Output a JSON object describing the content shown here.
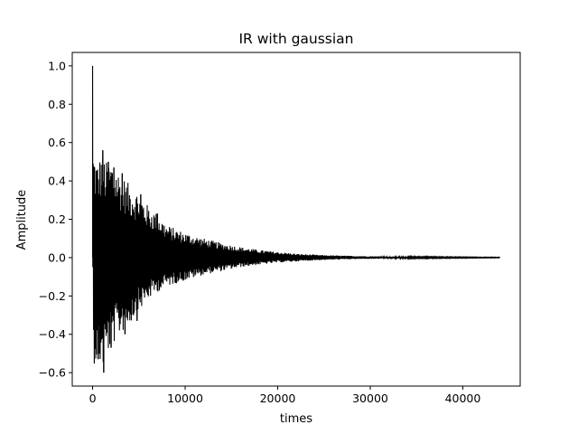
{
  "chart_data": {
    "type": "line",
    "title": "IR with gaussian",
    "xlabel": "times",
    "ylabel": "Amplitude",
    "xlim": [
      -2200,
      46200
    ],
    "ylim": [
      -0.67,
      1.07
    ],
    "xticks": [
      0,
      10000,
      20000,
      30000,
      40000
    ],
    "xtick_labels": [
      "0",
      "10000",
      "20000",
      "30000",
      "40000"
    ],
    "yticks": [
      -0.6,
      -0.4,
      -0.2,
      0.0,
      0.2,
      0.4,
      0.6,
      0.8,
      1.0
    ],
    "ytick_labels": [
      "−0.6",
      "−0.4",
      "−0.2",
      "0.0",
      "0.2",
      "0.4",
      "0.6",
      "0.8",
      "1.0"
    ],
    "grid": false,
    "series": [
      {
        "color": "#000000",
        "peak": {
          "x": 0,
          "y": 1.0
        },
        "envelope": {
          "x": [
            100,
            300,
            600,
            1000,
            1500,
            2000,
            3000,
            4000,
            5000,
            6000,
            7000,
            8000,
            10000,
            12000,
            14000,
            16000,
            18000,
            20000,
            22000,
            25000,
            28000,
            32000,
            36000,
            40000,
            44000
          ],
          "upper": [
            0.58,
            0.53,
            0.5,
            0.56,
            0.5,
            0.52,
            0.44,
            0.38,
            0.34,
            0.27,
            0.23,
            0.17,
            0.13,
            0.1,
            0.075,
            0.055,
            0.04,
            0.03,
            0.02,
            0.013,
            0.009,
            0.006,
            0.004,
            0.003,
            0.002
          ],
          "lower": [
            -0.55,
            -0.56,
            -0.53,
            -0.6,
            -0.52,
            -0.47,
            -0.4,
            -0.35,
            -0.28,
            -0.22,
            -0.18,
            -0.15,
            -0.12,
            -0.09,
            -0.07,
            -0.05,
            -0.037,
            -0.026,
            -0.02,
            -0.012,
            -0.008,
            -0.005,
            -0.003,
            -0.002,
            -0.001
          ]
        },
        "spikes": [
          {
            "x": 1100,
            "y": 0.56
          },
          {
            "x": 1700,
            "y": 0.5
          },
          {
            "x": 2300,
            "y": 0.47
          },
          {
            "x": 3200,
            "y": 0.44
          },
          {
            "x": 5200,
            "y": 0.33
          },
          {
            "x": 7000,
            "y": 0.23
          },
          {
            "x": 1200,
            "y": -0.6
          },
          {
            "x": 600,
            "y": -0.53
          },
          {
            "x": 2000,
            "y": -0.47
          },
          {
            "x": 3500,
            "y": -0.4
          },
          {
            "x": 4800,
            "y": -0.33
          }
        ]
      }
    ]
  }
}
